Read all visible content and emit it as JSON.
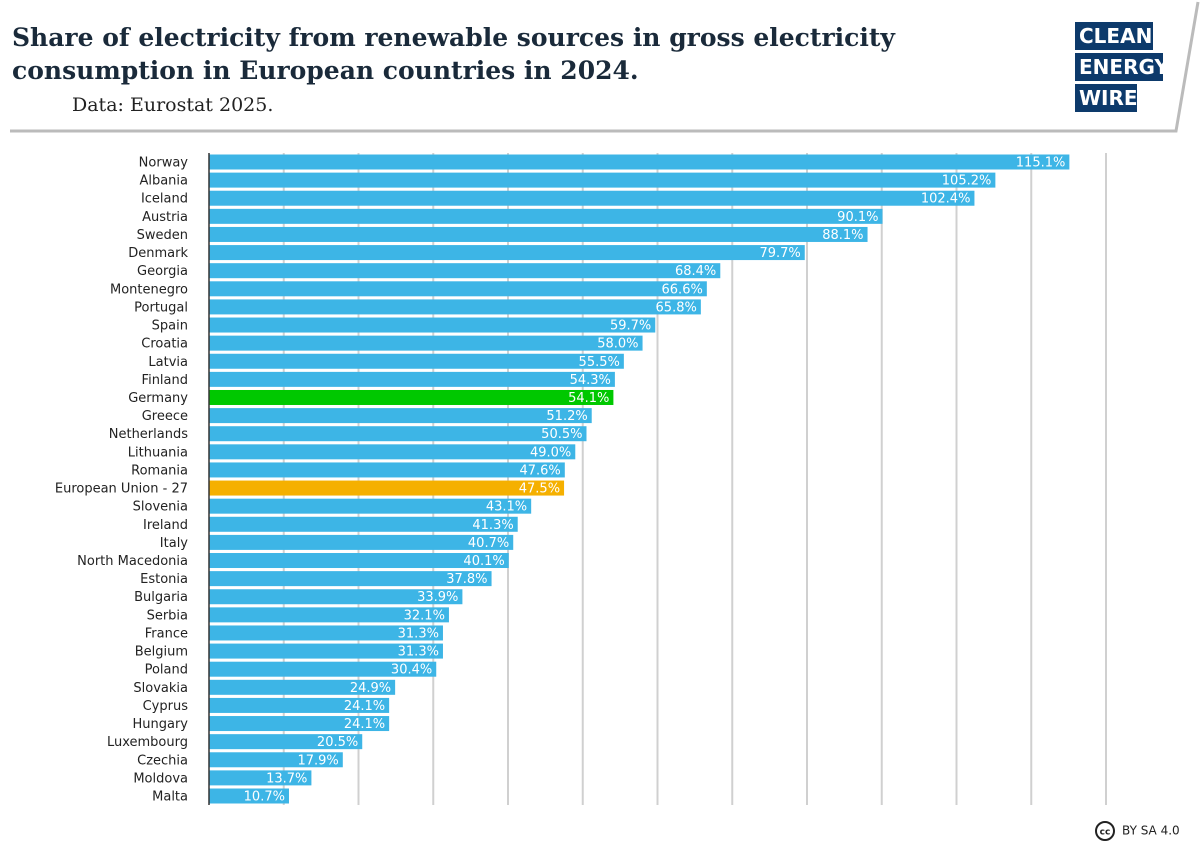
{
  "chart_data": {
    "type": "hbar",
    "title": [
      "Share of electricity from renewable sources in gross electricity",
      "consumption in European countries in 2024."
    ],
    "subtitle": "Data: Eurostat 2025.",
    "logo": [
      "CLEAN",
      "ENERGY",
      "WIRE"
    ],
    "license": "BY SA 4.0",
    "categories": [
      "Norway",
      "Albania",
      "Iceland",
      "Austria",
      "Sweden",
      "Denmark",
      "Georgia",
      "Montenegro",
      "Portugal",
      "Spain",
      "Croatia",
      "Latvia",
      "Finland",
      "Germany",
      "Greece",
      "Netherlands",
      "Lithuania",
      "Romania",
      "European Union - 27",
      "Slovenia",
      "Ireland",
      "Italy",
      "North Macedonia",
      "Estonia",
      "Bulgaria",
      "Serbia",
      "France",
      "Belgium",
      "Poland",
      "Slovakia",
      "Cyprus",
      "Hungary",
      "Luxembourg",
      "Czechia",
      "Moldova",
      "Malta"
    ],
    "values": [
      115.1,
      105.2,
      102.4,
      90.1,
      88.1,
      79.7,
      68.4,
      66.6,
      65.8,
      59.7,
      58.0,
      55.5,
      54.3,
      54.1,
      51.2,
      50.5,
      49.0,
      47.6,
      47.5,
      43.1,
      41.3,
      40.7,
      40.1,
      37.8,
      33.9,
      32.1,
      31.3,
      31.3,
      30.4,
      24.9,
      24.1,
      24.1,
      20.5,
      17.9,
      13.7,
      10.7
    ],
    "value_labels": [
      "115.1%",
      "105.2%",
      "102.4%",
      "90.1%",
      "88.1%",
      "79.7%",
      "68.4%",
      "66.6%",
      "65.8%",
      "59.7%",
      "58.0%",
      "55.5%",
      "54.3%",
      "54.1%",
      "51.2%",
      "50.5%",
      "49.0%",
      "47.6%",
      "47.5%",
      "43.1%",
      "41.3%",
      "40.7%",
      "40.1%",
      "37.8%",
      "33.9%",
      "32.1%",
      "31.3%",
      "31.3%",
      "30.4%",
      "24.9%",
      "24.1%",
      "24.1%",
      "20.5%",
      "17.9%",
      "13.7%",
      "10.7%"
    ],
    "colors": [
      "#3db5e6",
      "#3db5e6",
      "#3db5e6",
      "#3db5e6",
      "#3db5e6",
      "#3db5e6",
      "#3db5e6",
      "#3db5e6",
      "#3db5e6",
      "#3db5e6",
      "#3db5e6",
      "#3db5e6",
      "#3db5e6",
      "#00c800",
      "#3db5e6",
      "#3db5e6",
      "#3db5e6",
      "#3db5e6",
      "#f5b000",
      "#3db5e6",
      "#3db5e6",
      "#3db5e6",
      "#3db5e6",
      "#3db5e6",
      "#3db5e6",
      "#3db5e6",
      "#3db5e6",
      "#3db5e6",
      "#3db5e6",
      "#3db5e6",
      "#3db5e6",
      "#3db5e6",
      "#3db5e6",
      "#3db5e6",
      "#3db5e6",
      "#3db5e6"
    ],
    "xlim": [
      0,
      120
    ],
    "xticks": [
      10,
      20,
      30,
      40,
      50,
      60,
      70,
      80,
      90,
      100,
      110,
      120
    ],
    "grid": true
  }
}
